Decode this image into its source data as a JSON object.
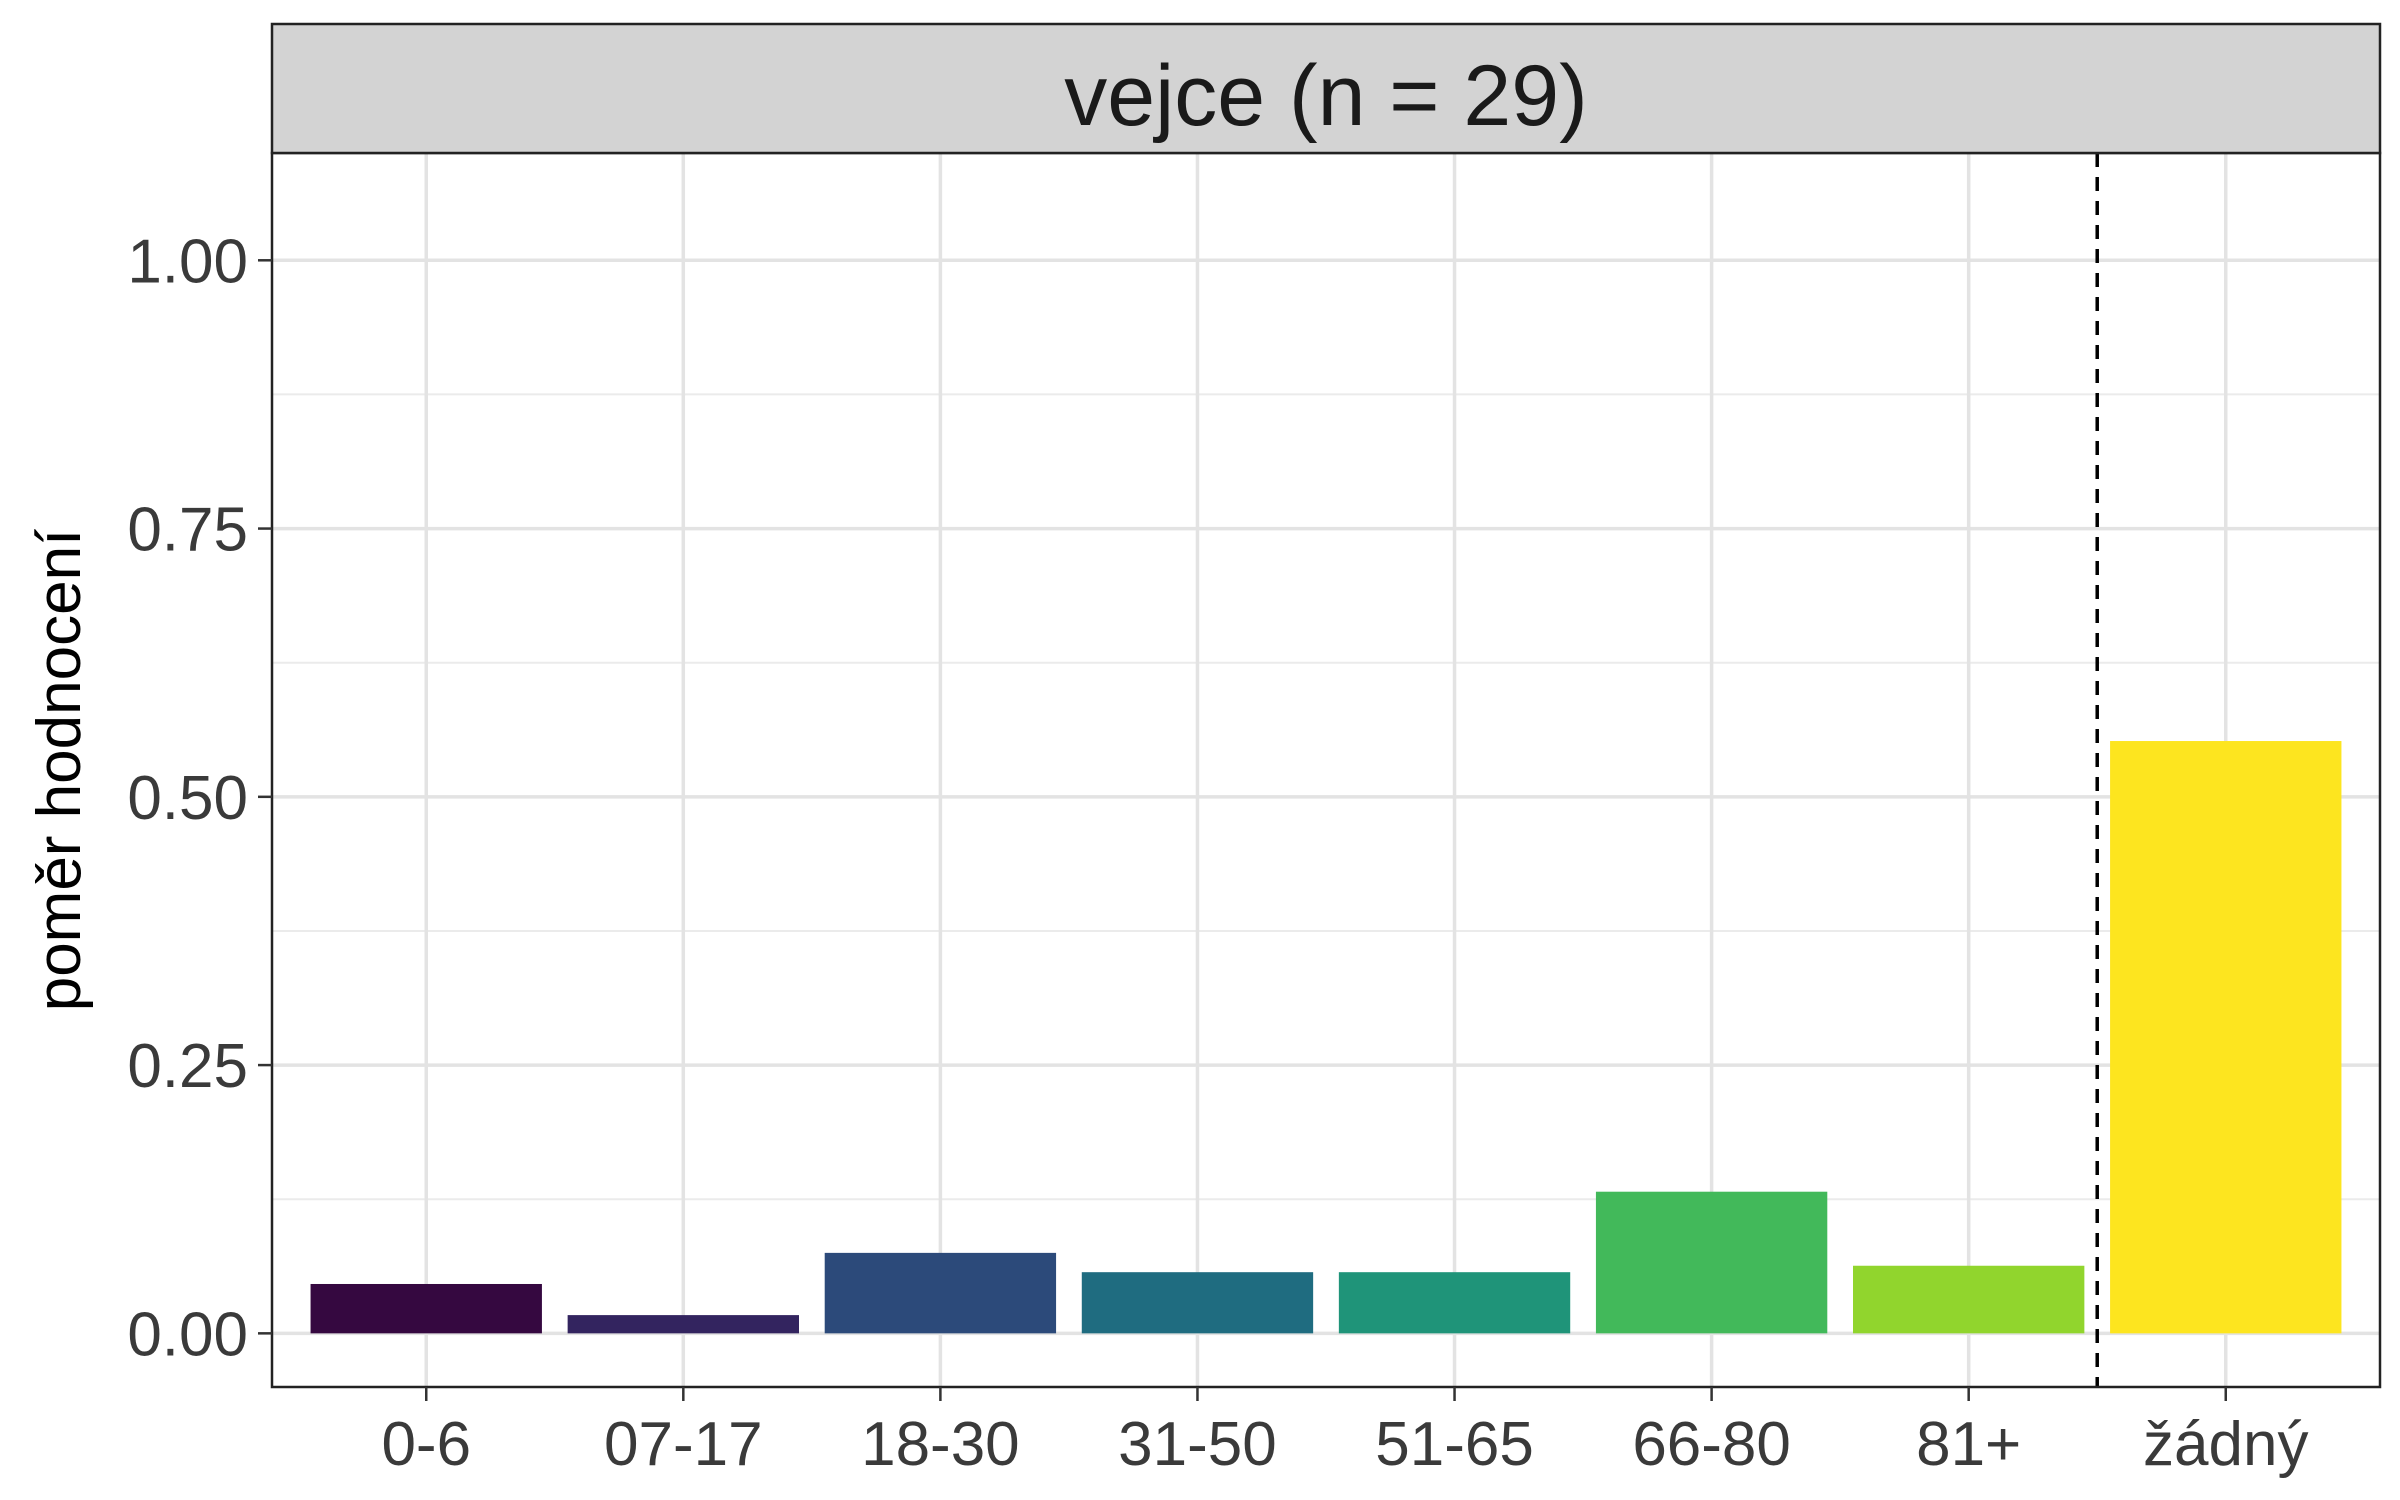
{
  "chart_data": {
    "type": "bar",
    "title": "vejce (n = 29)",
    "xlabel": "",
    "ylabel": "poměr hodnocení",
    "categories": [
      "0-6",
      "07-17",
      "18-30",
      "31-50",
      "51-65",
      "66-80",
      "81+",
      "žádný"
    ],
    "values": [
      0.046,
      0.017,
      0.075,
      0.057,
      0.057,
      0.132,
      0.063,
      0.552
    ],
    "colors": [
      "#350840",
      "#33245f",
      "#2c4a7a",
      "#1f6c80",
      "#1f9479",
      "#42b95a",
      "#91d52d",
      "#fde51f"
    ],
    "ylim": [
      -0.05,
      1.1
    ],
    "yticks": [
      0,
      0.25,
      0.5,
      0.75,
      1.0
    ],
    "ytick_labels": [
      "0.00",
      "0.25",
      "0.50",
      "0.75",
      "1.00"
    ],
    "grid": true,
    "reference_line": {
      "between": [
        "81+",
        "žádný"
      ],
      "style": "dashed"
    },
    "legend": "none"
  }
}
